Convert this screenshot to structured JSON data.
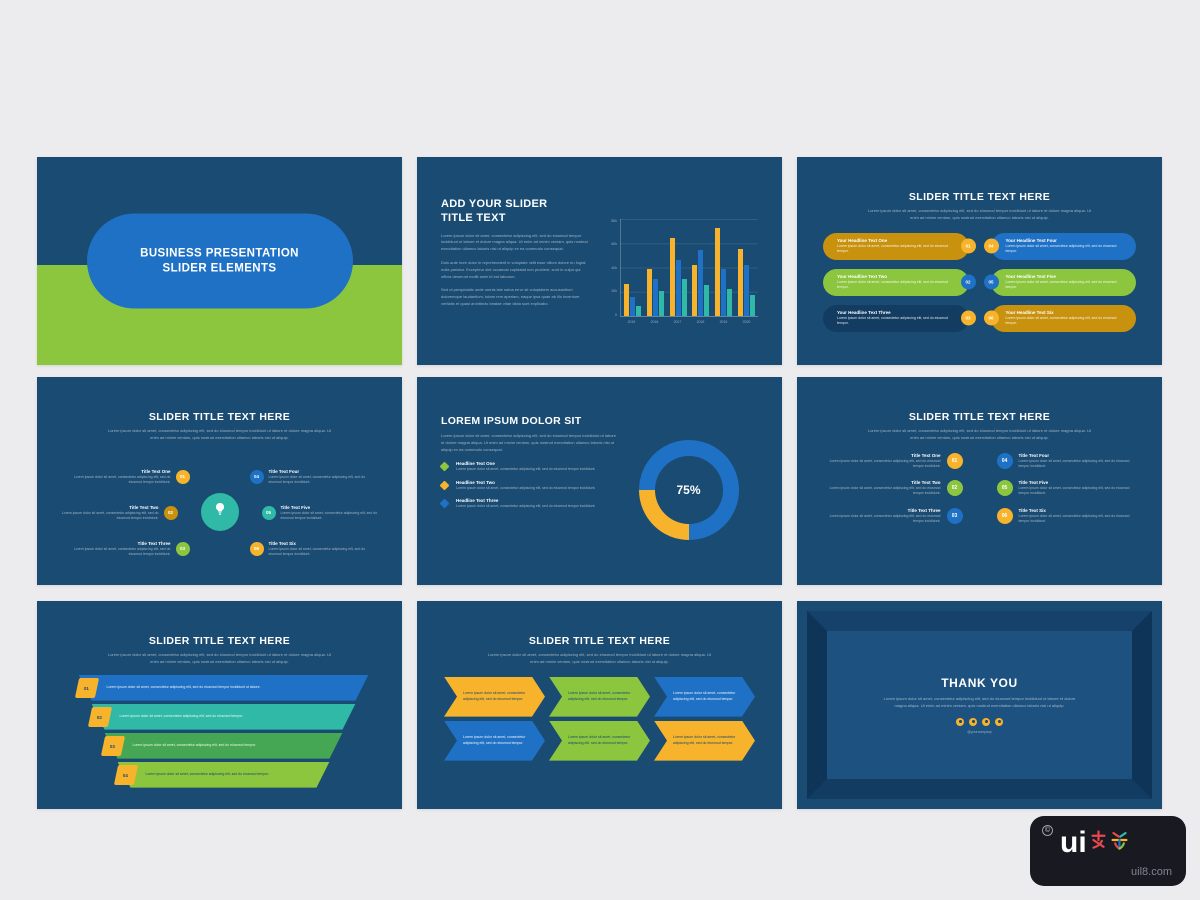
{
  "page": {
    "background": "#ECECEE"
  },
  "palette": {
    "navy": "#1A4B72",
    "blue": "#1F71C5",
    "green": "#8CC63E",
    "teal": "#2FB9A6",
    "yellow": "#F6B32B",
    "gold": "#C8920F"
  },
  "lorem": {
    "p1": "Lorem ipsum dolor sit amet, consectetur adipiscing elit, sed do eiusmod tempor incididunt ut labore et dolore magna aliqua. Ut enim ad minim veniam, quis nostrud exercitation ullamco laboris nisi ut aliquip ex ea commodo consequat.",
    "p2": "Duis aute irure dolor in reprehenderit in voluptate velit esse cillum dolore eu fugiat nulla pariatur. Excepteur sint occaecat cupidatat non proident, sunt in culpa qui officia deserunt mollit anim id est laborum.",
    "p3": "Sed ut perspiciatis unde omnis iste natus error sit voluptatem accusantium doloremque laudantium, totam rem aperiam, eaque ipsa quae ab illo inventore veritatis et quasi architecto beatae vitae dicta sunt explicabo.",
    "sub": "Lorem ipsum dolor sit amet, consectetur adipiscing elit, sed do eiusmod tempor incididunt ut labore et dolore magna aliqua. Ut enim ad minim veniam, quis nostrud exercitation ullamco laboris nisi ut aliquip.",
    "short": "Lorem ipsum dolor sit amet, consectetur adipiscing elit, sed do eiusmod tempor incididunt ut labore.",
    "mini": "Lorem ipsum dolor sit amet, consectetur adipiscing elit, sed do eiusmod tempor.",
    "item": "Lorem ipsum dolor sit amet, consectetur adipiscing elit, sed do eiusmod tempor incididunt."
  },
  "slide1": {
    "line1": "BUSINESS PRESENTATION",
    "line2": "SLIDER ELEMENTS"
  },
  "slide2": {
    "title1": "ADD YOUR SLIDER",
    "title2": "TITLE TEXT"
  },
  "slide3": {
    "title": "SLIDER TITLE TEXT HERE",
    "items": [
      {
        "num": "01",
        "headline": "Your Headline Text One"
      },
      {
        "num": "02",
        "headline": "Your Headline Text Two"
      },
      {
        "num": "03",
        "headline": "Your Headline Text Three"
      },
      {
        "num": "04",
        "headline": "Your Headline Text Four"
      },
      {
        "num": "05",
        "headline": "Your Headline Text Five"
      },
      {
        "num": "06",
        "headline": "Your Headline Text Six"
      }
    ]
  },
  "slide4": {
    "title": "SLIDER TITLE TEXT HERE",
    "items": [
      {
        "num": "01",
        "title": "Title Text One"
      },
      {
        "num": "02",
        "title": "Title Text Two"
      },
      {
        "num": "03",
        "title": "Title Text Three"
      },
      {
        "num": "04",
        "title": "Title Text Four"
      },
      {
        "num": "05",
        "title": "Title Text Five"
      },
      {
        "num": "06",
        "title": "Title Text Six"
      }
    ]
  },
  "slide5": {
    "title": "LOREM IPSUM DOLOR SIT",
    "items": [
      {
        "headline": "Headline Text One"
      },
      {
        "headline": "Headline Text Two"
      },
      {
        "headline": "Headline Text Three"
      }
    ]
  },
  "slide6": {
    "title": "SLIDER TITLE TEXT HERE",
    "items": [
      {
        "num": "01",
        "title": "Title Text One"
      },
      {
        "num": "02",
        "title": "Title Text Two"
      },
      {
        "num": "03",
        "title": "Title Text Three"
      },
      {
        "num": "04",
        "title": "Title Text Four"
      },
      {
        "num": "05",
        "title": "Title Text Five"
      },
      {
        "num": "06",
        "title": "Title Text Six"
      }
    ]
  },
  "slide7": {
    "title": "SLIDER TITLE TEXT HERE",
    "steps": [
      {
        "num": "01"
      },
      {
        "num": "02"
      },
      {
        "num": "03"
      },
      {
        "num": "04"
      }
    ]
  },
  "slide8": {
    "title": "SLIDER TITLE TEXT HERE"
  },
  "slide9": {
    "title": "THANK YOU",
    "handle": "@yourcompany",
    "social_icons": [
      "facebook",
      "twitter",
      "linkedin",
      "instagram"
    ]
  },
  "watermark": {
    "copyright": "©",
    "logo_text": "ui",
    "site": "uil8.com"
  },
  "chart_data": [
    {
      "type": "bar",
      "title": "",
      "xlabel": "",
      "ylabel": "",
      "categories": [
        "2015",
        "2016",
        "2017",
        "2018",
        "2019",
        "2020"
      ],
      "series": [
        {
          "name": "series-yellow",
          "color": "#F6B32B",
          "values": [
            26,
            38,
            64,
            42,
            72,
            55
          ]
        },
        {
          "name": "series-blue",
          "color": "#1F71C5",
          "values": [
            15,
            30,
            46,
            54,
            38,
            42
          ]
        },
        {
          "name": "series-teal",
          "color": "#2FB9A6",
          "values": [
            8,
            20,
            30,
            25,
            22,
            17
          ]
        }
      ],
      "ylim": [
        0,
        80
      ],
      "yticks": [
        "80k",
        "60k",
        "40k",
        "20k",
        "0"
      ],
      "grid": true,
      "legend": "none"
    },
    {
      "type": "donut",
      "values": [
        {
          "label": "progress",
          "value": 75,
          "color": "#1F71C5"
        },
        {
          "label": "remainder",
          "value": 25,
          "color": "#F6B32B"
        }
      ],
      "center_label": "75%"
    }
  ]
}
